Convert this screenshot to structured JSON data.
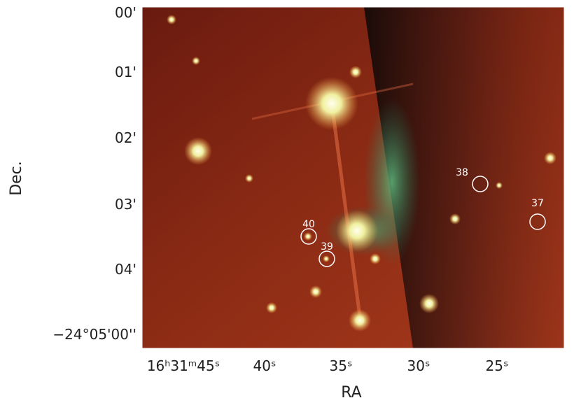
{
  "image": {
    "x_label": "RA",
    "y_label": "Dec.",
    "x_ticks": [
      "16ʰ31ᵐ45ˢ",
      "40ˢ",
      "35ˢ",
      "30ˢ",
      "25ˢ"
    ],
    "y_ticks": [
      "00'",
      "01'",
      "02'",
      "03'",
      "04'",
      "−24°05'00''"
    ],
    "sources": [
      {
        "label": "40"
      },
      {
        "label": "39"
      },
      {
        "label": "38"
      },
      {
        "label": "37"
      }
    ]
  }
}
